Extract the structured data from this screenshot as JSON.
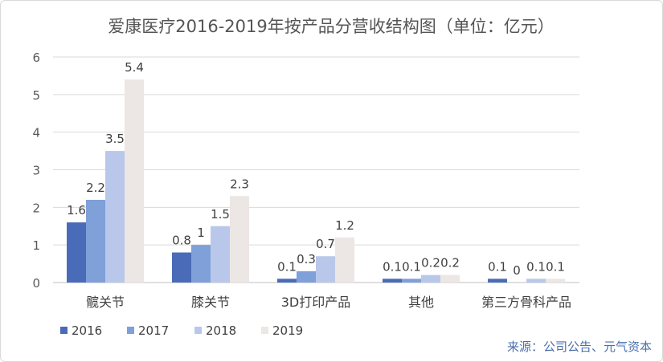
{
  "chart_data": {
    "type": "bar",
    "title": "爱康医疗2016-2019年按产品分营收结构图（单位：亿元）",
    "categories": [
      "髋关节",
      "膝关节",
      "3D打印产品",
      "其他",
      "第三方骨科产品"
    ],
    "series": [
      {
        "name": "2016",
        "color": "#4a6bb8",
        "values": [
          1.6,
          0.8,
          0.1,
          0.1,
          0.1
        ]
      },
      {
        "name": "2017",
        "color": "#7fa0d8",
        "values": [
          2.2,
          1,
          0.3,
          0.1,
          0
        ]
      },
      {
        "name": "2018",
        "color": "#b9c8ea",
        "values": [
          3.5,
          1.5,
          0.7,
          0.2,
          0.1
        ]
      },
      {
        "name": "2019",
        "color": "#ece6e4",
        "values": [
          5.4,
          2.3,
          1.2,
          0.2,
          0.1
        ]
      }
    ],
    "ylim": [
      0,
      6
    ],
    "yticks": [
      0,
      1,
      2,
      3,
      4,
      5,
      6
    ],
    "grid": true,
    "legend_position": "bottom-left",
    "data_labels": true
  },
  "source_note": "来源：公司公告、元气资本"
}
